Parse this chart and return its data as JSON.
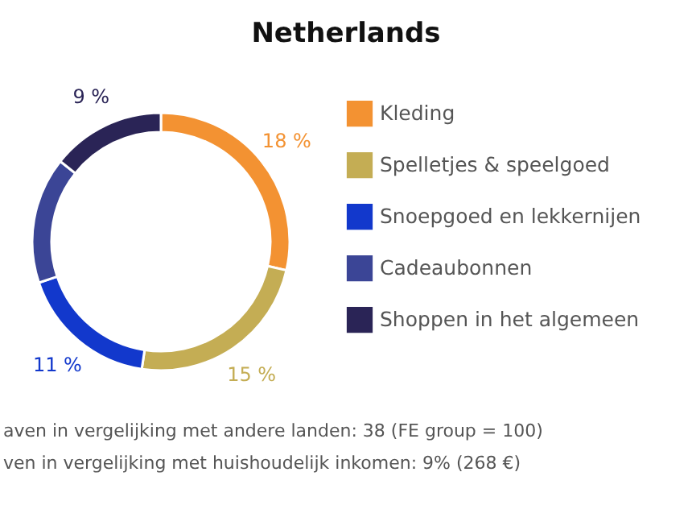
{
  "chart_data": {
    "type": "donut",
    "title": "Netherlands",
    "categories": [
      "Kleding",
      "Spelletjes & speelgoed",
      "Snoepgoed en lekkernijen",
      "Cadeaubonnen",
      "Shoppen in het algemeen"
    ],
    "values": [
      18,
      15,
      11,
      10,
      9
    ],
    "colors": [
      "#f39232",
      "#c4ad54",
      "#1238cc",
      "#3b4596",
      "#2a2456"
    ],
    "value_labels": [
      "18 %",
      "15 %",
      "11 %",
      null,
      "9 %"
    ],
    "legend": "right",
    "annotations": [
      "aven in vergelijking met andere landen: 38 (FE group = 100)",
      "ven in vergelijking met huishoudelijk inkomen: 9% (268 €)"
    ]
  }
}
